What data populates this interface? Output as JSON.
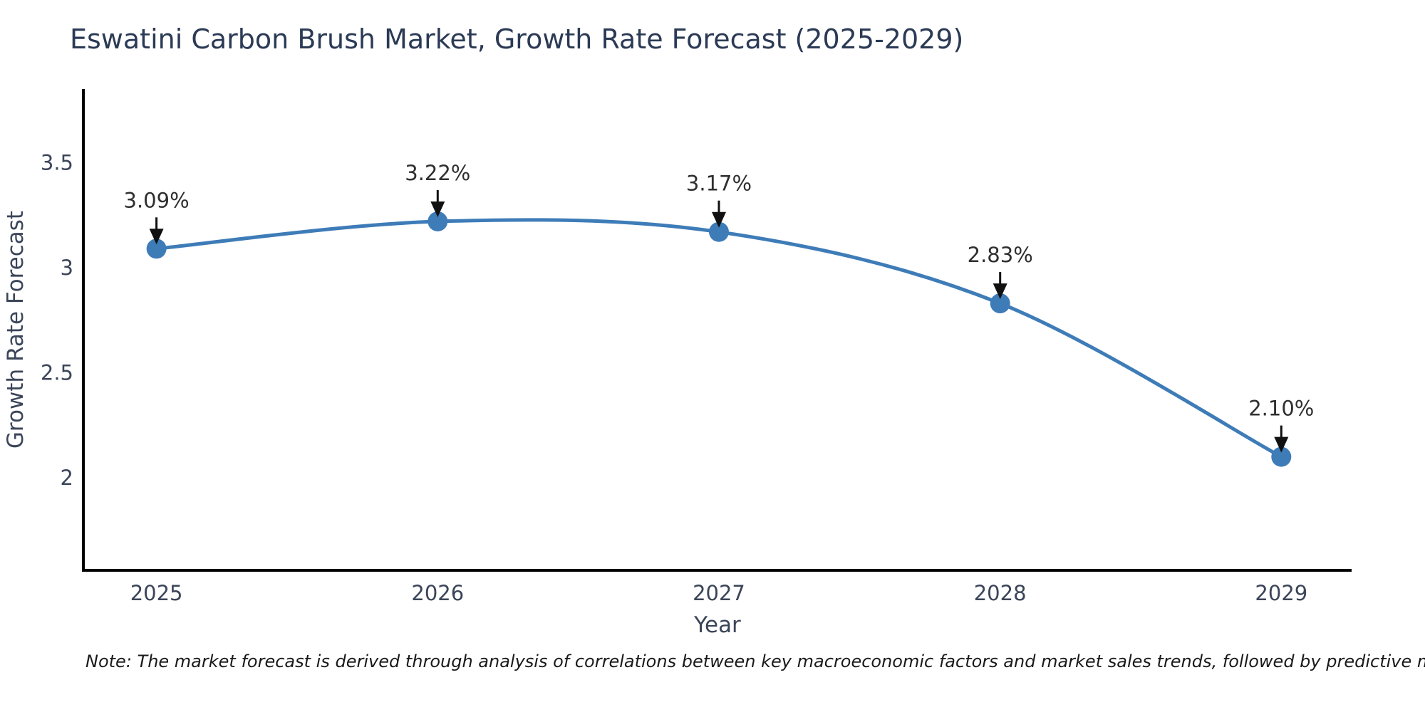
{
  "chart_data": {
    "type": "line",
    "title": "Eswatini Carbon Brush Market, Growth Rate Forecast (2025-2029)",
    "xlabel": "Year",
    "ylabel": "Growth Rate Forecast",
    "x": [
      2025,
      2026,
      2027,
      2028,
      2029
    ],
    "x_tick_labels": [
      "2025",
      "2026",
      "2027",
      "2028",
      "2029"
    ],
    "series": [
      {
        "name": "Growth Rate Forecast",
        "values": [
          3.09,
          3.22,
          3.17,
          2.83,
          2.1
        ]
      }
    ],
    "point_labels": [
      "3.09%",
      "3.22%",
      "3.17%",
      "2.83%",
      "2.10%"
    ],
    "y_ticks": [
      2,
      2.5,
      3,
      3.5
    ],
    "y_tick_labels": [
      "2",
      "2.5",
      "3",
      "3.5"
    ],
    "xlim": [
      2024.74,
      2029.25
    ],
    "ylim": [
      1.56,
      3.85
    ],
    "grid": false,
    "legend": false,
    "smooth": true,
    "line_color": "#3e7cb8",
    "marker_color": "#3e7cb8",
    "arrow_color": "#111111",
    "axis_color": "#000000",
    "background_color": "#ffffff"
  },
  "note": "Note: The market forecast is derived through analysis of correlations between key macroeconomic factors and market sales trends, followed by predictive modeling to project future sales"
}
